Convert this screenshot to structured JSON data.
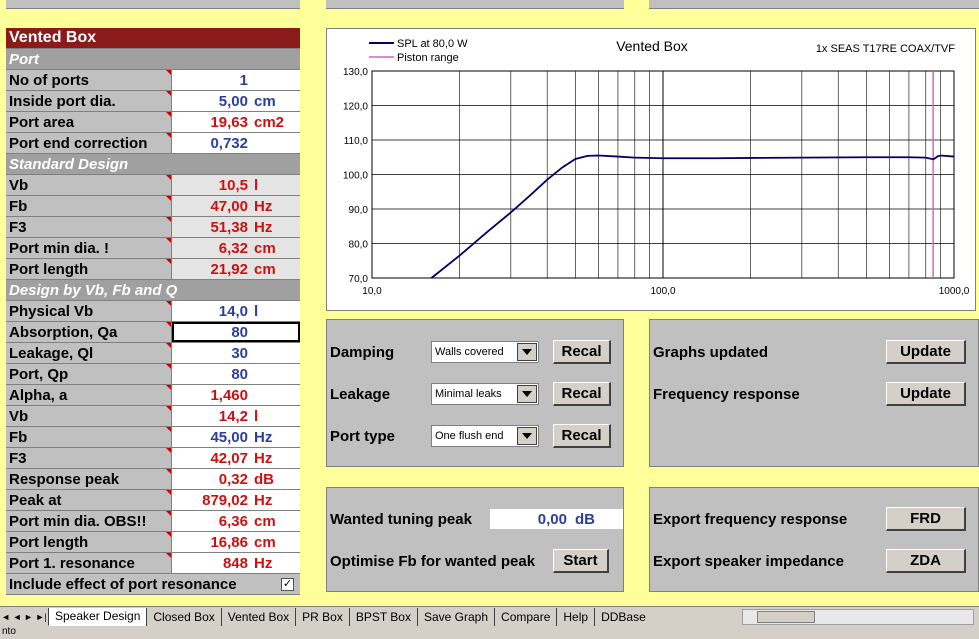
{
  "left": {
    "title": "Vented Box",
    "sections": [
      {
        "header": "Port",
        "rows": [
          {
            "label": "No of ports",
            "value": "1",
            "unit": "",
            "color": "blue"
          },
          {
            "label": "Inside port dia.",
            "value": "5,00",
            "unit": "cm",
            "color": "blue"
          },
          {
            "label": "Port area",
            "value": "19,63",
            "unit": "cm2",
            "color": "red"
          },
          {
            "label": "Port end correction",
            "value": "0,732",
            "unit": "",
            "color": "blue"
          }
        ]
      },
      {
        "header": "Standard Design",
        "rows": [
          {
            "label": "Vb",
            "value": "10,5",
            "unit": "l",
            "color": "red"
          },
          {
            "label": "Fb",
            "value": "47,00",
            "unit": "Hz",
            "color": "red"
          },
          {
            "label": "F3",
            "value": "51,38",
            "unit": "Hz",
            "color": "red"
          },
          {
            "label": "Port min dia. !",
            "value": "6,32",
            "unit": "cm",
            "color": "red"
          },
          {
            "label": "Port length",
            "value": "21,92",
            "unit": "cm",
            "color": "red"
          }
        ]
      },
      {
        "header": "Design by Vb, Fb and Q",
        "rows": [
          {
            "label": "Physical Vb",
            "value": "14,0",
            "unit": "l",
            "color": "blue"
          },
          {
            "label": "Absorption, Qa",
            "value": "80",
            "unit": "",
            "color": "blue"
          },
          {
            "label": "Leakage, Ql",
            "value": "30",
            "unit": "",
            "color": "blue"
          },
          {
            "label": "Port, Qp",
            "value": "80",
            "unit": "",
            "color": "blue"
          },
          {
            "label": "Alpha, a",
            "value": "1,460",
            "unit": "",
            "color": "red"
          },
          {
            "label": "Vb",
            "value": "14,2",
            "unit": "l",
            "color": "red"
          },
          {
            "label": "Fb",
            "value": "45,00",
            "unit": "Hz",
            "color": "blue"
          },
          {
            "label": "F3",
            "value": "42,07",
            "unit": "Hz",
            "color": "red"
          },
          {
            "label": "Response peak",
            "value": "0,32",
            "unit": "dB",
            "color": "red"
          },
          {
            "label": "Peak at",
            "value": "879,02",
            "unit": "Hz",
            "color": "red"
          },
          {
            "label": "Port min dia. OBS!!",
            "value": "6,36",
            "unit": "cm",
            "color": "red"
          },
          {
            "label": "Port length",
            "value": "16,86",
            "unit": "cm",
            "color": "red"
          },
          {
            "label": "Port 1. resonance",
            "value": "848",
            "unit": "Hz",
            "color": "red"
          }
        ]
      }
    ],
    "include_resonance_label": "Include effect of port resonance",
    "include_resonance_checked": true
  },
  "chart_data": {
    "type": "line",
    "title": "Vented Box",
    "subtitle": "1x SEAS T17RE COAX/TVF",
    "legend": [
      "SPL at 80,0 W",
      "Piston range"
    ],
    "legend_placement": "top-left",
    "x_scale": "log",
    "xlim": [
      10,
      1000
    ],
    "x_ticks": [
      "10,0",
      "100,0",
      "1000,0"
    ],
    "ylim": [
      70,
      130
    ],
    "y_ticks": [
      "130,0",
      "120,0",
      "110,0",
      "100,0",
      "90,0",
      "80,0",
      "70,0"
    ],
    "grid": true,
    "series": [
      {
        "name": "SPL at 80,0 W",
        "color": "#000066",
        "x": [
          16,
          20,
          25,
          30,
          35,
          40,
          45,
          50,
          55,
          60,
          70,
          80,
          100,
          150,
          200,
          300,
          500,
          700,
          800,
          850,
          880,
          900,
          1000
        ],
        "y": [
          70,
          76.5,
          83.5,
          89,
          94,
          98.5,
          102,
          104.5,
          105.4,
          105.5,
          105.2,
          104.9,
          104.7,
          104.7,
          104.8,
          104.9,
          105,
          105,
          104.9,
          104.4,
          105.3,
          105.5,
          105.2
        ]
      },
      {
        "name": "Piston range",
        "color": "#cc66cc",
        "x": [
          848,
          848
        ],
        "y": [
          70,
          130
        ]
      }
    ]
  },
  "mid": {
    "rows": [
      {
        "label": "Damping",
        "select": "Walls covered",
        "button": "Recal"
      },
      {
        "label": "Leakage",
        "select": "Minimal leaks",
        "button": "Recal"
      },
      {
        "label": "Port type",
        "select": "One flush end",
        "button": "Recal"
      }
    ],
    "wanted_label": "Wanted tuning peak",
    "wanted_value": "0,00",
    "wanted_unit": "dB",
    "optimise_label": "Optimise Fb for wanted peak",
    "optimise_button": "Start"
  },
  "right": {
    "rows": [
      {
        "label": "Graphs updated",
        "button": "Update"
      },
      {
        "label": "Frequency response",
        "button": "Update"
      }
    ],
    "export_rows": [
      {
        "label": "Export frequency response",
        "button": "FRD"
      },
      {
        "label": "Export speaker impedance",
        "button": "ZDA"
      }
    ]
  },
  "tabs": [
    "Speaker Design",
    "Closed Box",
    "Vented Box",
    "PR Box",
    "BPST Box",
    "Save Graph",
    "Compare",
    "Help",
    "DDBase"
  ],
  "active_tab": "Speaker Design",
  "status": "nto"
}
